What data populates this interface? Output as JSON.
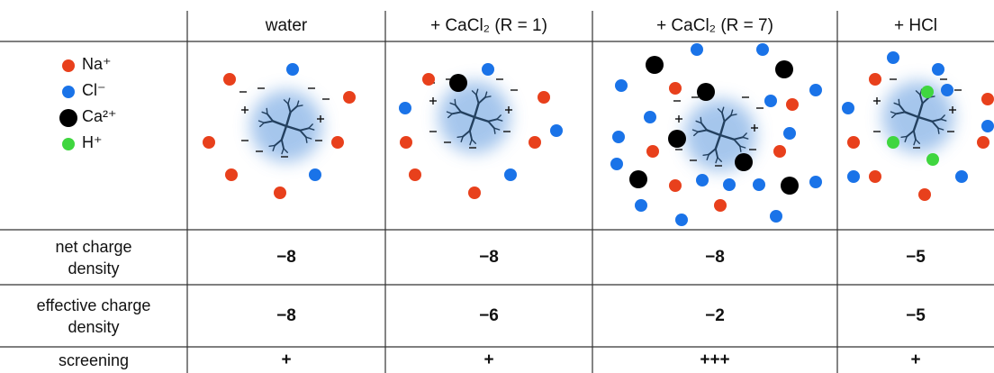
{
  "header": {
    "columns": [
      "water",
      "+ CaCl₂ (R = 1)",
      "+ CaCl₂ (R = 7)",
      "+ HCl"
    ]
  },
  "legend": [
    "Na⁺",
    "Cl⁻",
    "Ca²⁺",
    "H⁺"
  ],
  "table": {
    "rows": [
      {
        "label": "net charge density",
        "cells": [
          "−8",
          "−8",
          "−8",
          "−5"
        ]
      },
      {
        "label": "effective charge density",
        "cells": [
          "−8",
          "−6",
          "−2",
          "−5"
        ]
      },
      {
        "label": "screening",
        "cells": [
          "+",
          "+",
          "+++",
          "+"
        ]
      }
    ]
  }
}
